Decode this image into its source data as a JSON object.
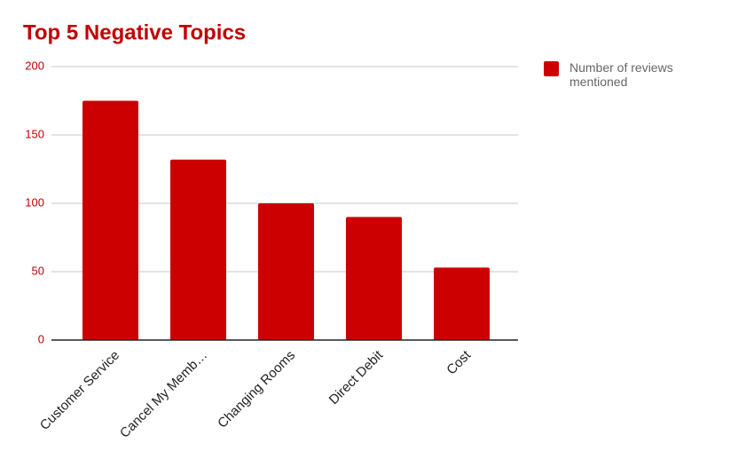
{
  "chart_data": {
    "type": "bar",
    "title": "Top 5 Negative Topics",
    "categories": [
      "Customer Service",
      "Cancel My Memb…",
      "Changing Rooms",
      "Direct Debit",
      "Cost"
    ],
    "series": [
      {
        "name": "Number of reviews mentioned",
        "color": "#cc0000",
        "values": [
          175,
          132,
          100,
          90,
          53
        ]
      }
    ],
    "ylim": [
      0,
      200
    ],
    "yticks": [
      0,
      50,
      100,
      150,
      200
    ],
    "grid": true,
    "legend": "right"
  }
}
